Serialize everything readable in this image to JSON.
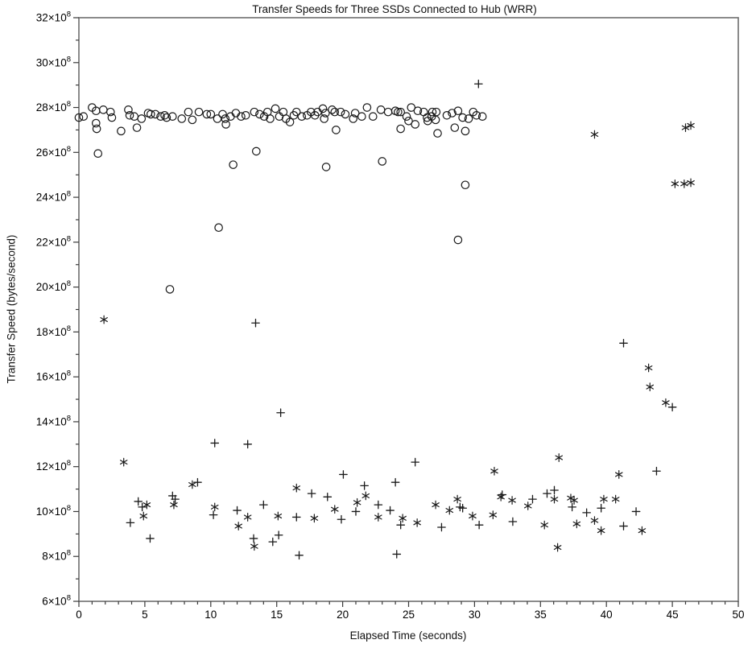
{
  "chart_data": {
    "type": "scatter",
    "title": "Transfer Speeds for Three SSDs Connected to Hub (WRR)",
    "xlabel": "Elapsed Time (seconds)",
    "ylabel": "Transfer Speed (bytes/second)",
    "xlim": [
      0,
      50
    ],
    "ylim_e8": [
      6,
      32
    ],
    "xticks_major": [
      0,
      5,
      10,
      15,
      20,
      25,
      30,
      35,
      40,
      45,
      50
    ],
    "xtick_minor_step": 1,
    "yticks_major": [
      6,
      8,
      10,
      12,
      14,
      16,
      18,
      20,
      22,
      24,
      26,
      28,
      30,
      32
    ],
    "ytick_minor_step": 1,
    "ytick_times": "×10",
    "ytick_exp": "8",
    "grid": false,
    "legend": "none",
    "colors": {
      "marker": "#1a1a1a",
      "axis": "#6e6e6e",
      "tick": "#3a3a3a",
      "text": "#000000"
    },
    "units_note": "y values are in 1e8 bytes/second",
    "series": [
      {
        "marker": "circle",
        "points": [
          [
            0.0,
            27.55
          ],
          [
            0.35,
            27.6
          ],
          [
            1.0,
            28.0
          ],
          [
            1.3,
            27.85
          ],
          [
            1.3,
            27.3
          ],
          [
            1.35,
            27.05
          ],
          [
            1.45,
            25.95
          ],
          [
            1.85,
            27.9
          ],
          [
            2.4,
            27.8
          ],
          [
            2.5,
            27.55
          ],
          [
            3.2,
            26.95
          ],
          [
            3.75,
            27.9
          ],
          [
            3.85,
            27.65
          ],
          [
            4.2,
            27.6
          ],
          [
            4.4,
            27.1
          ],
          [
            4.75,
            27.5
          ],
          [
            5.25,
            27.75
          ],
          [
            5.45,
            27.7
          ],
          [
            5.8,
            27.7
          ],
          [
            6.2,
            27.6
          ],
          [
            6.5,
            27.65
          ],
          [
            6.65,
            27.55
          ],
          [
            6.9,
            19.9
          ],
          [
            7.1,
            27.6
          ],
          [
            7.8,
            27.5
          ],
          [
            8.3,
            27.8
          ],
          [
            8.6,
            27.45
          ],
          [
            9.1,
            27.8
          ],
          [
            9.7,
            27.7
          ],
          [
            10.0,
            27.7
          ],
          [
            10.5,
            27.5
          ],
          [
            10.6,
            22.65
          ],
          [
            10.9,
            27.7
          ],
          [
            11.1,
            27.5
          ],
          [
            11.15,
            27.25
          ],
          [
            11.5,
            27.6
          ],
          [
            11.7,
            25.45
          ],
          [
            11.9,
            27.75
          ],
          [
            12.3,
            27.6
          ],
          [
            12.65,
            27.65
          ],
          [
            13.3,
            27.8
          ],
          [
            13.45,
            26.05
          ],
          [
            13.7,
            27.7
          ],
          [
            14.05,
            27.6
          ],
          [
            14.3,
            27.8
          ],
          [
            14.5,
            27.5
          ],
          [
            14.9,
            27.95
          ],
          [
            15.2,
            27.6
          ],
          [
            15.5,
            27.8
          ],
          [
            15.7,
            27.5
          ],
          [
            16.0,
            27.35
          ],
          [
            16.3,
            27.65
          ],
          [
            16.5,
            27.8
          ],
          [
            16.9,
            27.6
          ],
          [
            17.3,
            27.65
          ],
          [
            17.6,
            27.8
          ],
          [
            17.9,
            27.65
          ],
          [
            18.1,
            27.8
          ],
          [
            18.5,
            27.95
          ],
          [
            18.6,
            27.5
          ],
          [
            18.7,
            27.75
          ],
          [
            18.75,
            25.35
          ],
          [
            19.2,
            27.9
          ],
          [
            19.4,
            27.8
          ],
          [
            19.5,
            27.0
          ],
          [
            19.85,
            27.8
          ],
          [
            20.2,
            27.7
          ],
          [
            20.8,
            27.5
          ],
          [
            20.95,
            27.75
          ],
          [
            21.45,
            27.6
          ],
          [
            21.85,
            28.0
          ],
          [
            22.3,
            27.6
          ],
          [
            22.9,
            27.9
          ],
          [
            23.0,
            25.6
          ],
          [
            23.45,
            27.8
          ],
          [
            24.0,
            27.85
          ],
          [
            24.2,
            27.8
          ],
          [
            24.4,
            27.8
          ],
          [
            24.4,
            27.05
          ],
          [
            24.85,
            27.6
          ],
          [
            25.0,
            27.4
          ],
          [
            25.2,
            28.0
          ],
          [
            25.5,
            27.25
          ],
          [
            25.7,
            27.85
          ],
          [
            26.15,
            27.8
          ],
          [
            26.4,
            27.55
          ],
          [
            26.45,
            27.4
          ],
          [
            26.75,
            27.6
          ],
          [
            26.8,
            27.8
          ],
          [
            27.05,
            27.45
          ],
          [
            27.1,
            27.8
          ],
          [
            27.2,
            26.85
          ],
          [
            27.9,
            27.65
          ],
          [
            28.3,
            27.75
          ],
          [
            28.5,
            27.1
          ],
          [
            28.75,
            27.85
          ],
          [
            28.75,
            22.1
          ],
          [
            29.1,
            27.55
          ],
          [
            29.3,
            26.95
          ],
          [
            29.3,
            24.55
          ],
          [
            29.55,
            27.5
          ],
          [
            29.9,
            27.8
          ],
          [
            30.15,
            27.65
          ],
          [
            30.6,
            27.6
          ]
        ]
      },
      {
        "marker": "plus",
        "points": [
          [
            3.9,
            9.5
          ],
          [
            4.5,
            10.45
          ],
          [
            4.8,
            10.2
          ],
          [
            5.4,
            8.8
          ],
          [
            7.1,
            10.7
          ],
          [
            7.3,
            10.55
          ],
          [
            9.0,
            11.3
          ],
          [
            10.2,
            9.85
          ],
          [
            10.3,
            13.05
          ],
          [
            12.0,
            10.05
          ],
          [
            12.8,
            13.0
          ],
          [
            13.25,
            8.8
          ],
          [
            13.4,
            18.4
          ],
          [
            14.0,
            10.3
          ],
          [
            14.7,
            8.65
          ],
          [
            15.15,
            8.95
          ],
          [
            15.3,
            14.4
          ],
          [
            16.5,
            9.75
          ],
          [
            16.7,
            8.05
          ],
          [
            17.65,
            10.8
          ],
          [
            18.85,
            10.65
          ],
          [
            19.9,
            9.65
          ],
          [
            20.05,
            11.65
          ],
          [
            21.0,
            10.0
          ],
          [
            21.65,
            11.15
          ],
          [
            22.7,
            10.3
          ],
          [
            23.6,
            10.05
          ],
          [
            24.0,
            11.3
          ],
          [
            24.1,
            8.1
          ],
          [
            24.4,
            9.4
          ],
          [
            25.5,
            12.2
          ],
          [
            27.5,
            9.3
          ],
          [
            28.9,
            10.2
          ],
          [
            29.1,
            10.15
          ],
          [
            30.3,
            29.05
          ],
          [
            30.35,
            9.4
          ],
          [
            32.1,
            10.75
          ],
          [
            32.9,
            9.55
          ],
          [
            34.4,
            10.55
          ],
          [
            35.5,
            10.8
          ],
          [
            36.05,
            10.95
          ],
          [
            37.4,
            10.2
          ],
          [
            38.5,
            9.95
          ],
          [
            39.6,
            10.15
          ],
          [
            41.3,
            17.5
          ],
          [
            41.3,
            9.35
          ],
          [
            42.25,
            10.0
          ],
          [
            43.8,
            11.8
          ],
          [
            45.0,
            14.65
          ]
        ]
      },
      {
        "marker": "asterisk",
        "points": [
          [
            1.9,
            18.55
          ],
          [
            3.4,
            12.2
          ],
          [
            4.9,
            9.8
          ],
          [
            5.15,
            10.3
          ],
          [
            7.2,
            10.3
          ],
          [
            8.6,
            11.2
          ],
          [
            10.3,
            10.2
          ],
          [
            12.1,
            9.35
          ],
          [
            12.8,
            9.75
          ],
          [
            13.3,
            8.45
          ],
          [
            15.1,
            9.8
          ],
          [
            16.5,
            11.05
          ],
          [
            17.85,
            9.7
          ],
          [
            19.4,
            10.1
          ],
          [
            21.1,
            10.4
          ],
          [
            21.75,
            10.7
          ],
          [
            22.7,
            9.75
          ],
          [
            24.55,
            9.7
          ],
          [
            25.65,
            9.5
          ],
          [
            27.05,
            10.3
          ],
          [
            28.1,
            10.05
          ],
          [
            28.7,
            10.55
          ],
          [
            29.85,
            9.8
          ],
          [
            31.4,
            9.85
          ],
          [
            31.5,
            11.8
          ],
          [
            32.0,
            10.65
          ],
          [
            32.85,
            10.5
          ],
          [
            34.05,
            10.25
          ],
          [
            35.3,
            9.4
          ],
          [
            36.05,
            10.55
          ],
          [
            36.4,
            12.4
          ],
          [
            36.3,
            8.4
          ],
          [
            37.3,
            10.6
          ],
          [
            37.55,
            10.5
          ],
          [
            37.75,
            9.45
          ],
          [
            39.1,
            26.8
          ],
          [
            39.1,
            9.6
          ],
          [
            39.6,
            9.15
          ],
          [
            39.8,
            10.55
          ],
          [
            40.7,
            10.55
          ],
          [
            40.95,
            11.65
          ],
          [
            42.7,
            9.15
          ],
          [
            43.2,
            16.4
          ],
          [
            43.3,
            15.55
          ],
          [
            44.5,
            14.85
          ],
          [
            45.2,
            24.6
          ],
          [
            45.9,
            24.6
          ],
          [
            46.4,
            24.65
          ],
          [
            46.0,
            27.1
          ],
          [
            46.4,
            27.2
          ]
        ]
      }
    ]
  }
}
